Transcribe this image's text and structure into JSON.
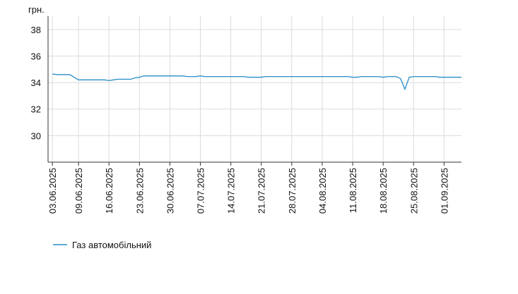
{
  "chart_data": {
    "type": "line",
    "y_unit": "грн.",
    "x": [
      "03.06.2025",
      "04.06.2025",
      "07.06.2025",
      "09.06.2025",
      "15.06.2025",
      "16.06.2025",
      "17.06.2025",
      "18.06.2025",
      "21.06.2025",
      "22.06.2025",
      "23.06.2025",
      "24.06.2025",
      "03.07.2025",
      "04.07.2025",
      "06.07.2025",
      "07.07.2025",
      "08.07.2025",
      "17.07.2025",
      "18.07.2025",
      "21.07.2025",
      "22.07.2025",
      "10.08.2025",
      "11.08.2025",
      "12.08.2025",
      "13.08.2025",
      "17.08.2025",
      "18.08.2025",
      "19.08.2025",
      "21.08.2025",
      "22.08.2025",
      "23.08.2025",
      "24.08.2025",
      "25.08.2025",
      "30.08.2025",
      "31.08.2025",
      "05.09.2025"
    ],
    "series": [
      {
        "name": "Газ автомобільний",
        "color": "#2a8dc5",
        "values": [
          34.65,
          34.6,
          34.6,
          34.2,
          34.2,
          34.15,
          34.2,
          34.25,
          34.25,
          34.35,
          34.4,
          34.5,
          34.5,
          34.45,
          34.45,
          34.5,
          34.45,
          34.45,
          34.4,
          34.4,
          34.45,
          34.45,
          34.4,
          34.4,
          34.45,
          34.45,
          34.4,
          34.45,
          34.45,
          34.3,
          33.5,
          34.4,
          34.45,
          34.45,
          34.4,
          34.4
        ]
      }
    ],
    "xlim": [
      "02.06.2025",
      "05.09.2025"
    ],
    "xticks": [
      "03.06.2025",
      "09.06.2025",
      "16.06.2025",
      "23.06.2025",
      "30.06.2025",
      "07.07.2025",
      "14.07.2025",
      "21.07.2025",
      "28.07.2025",
      "04.08.2025",
      "11.08.2025",
      "18.08.2025",
      "25.08.2025",
      "01.09.2025"
    ],
    "ylim": [
      28,
      39
    ],
    "yticks": [
      30,
      32,
      34,
      36,
      38
    ],
    "grid": true
  }
}
